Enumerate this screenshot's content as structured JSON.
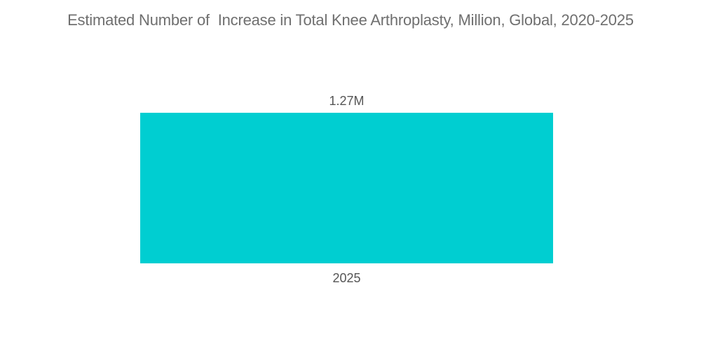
{
  "chart_data": {
    "type": "bar",
    "title": "Estimated Number of  Increase in Total Knee Arthroplasty, Million, Global, 2020-2025",
    "categories": [
      "2025"
    ],
    "values": [
      1.27
    ],
    "data_labels": [
      "1.27M"
    ],
    "xlabel": "",
    "ylabel": "",
    "ylim": [
      0,
      1.27
    ],
    "grid": false,
    "legend": "none",
    "colors": {
      "bar": "#00CED1"
    }
  }
}
